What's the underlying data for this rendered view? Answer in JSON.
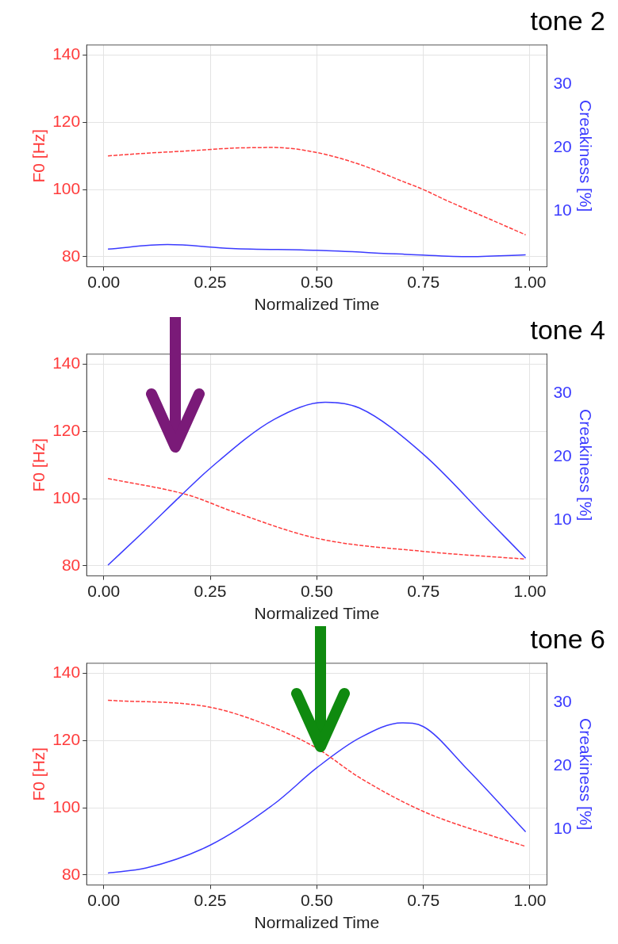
{
  "chart_data": [
    {
      "type": "line",
      "title": "tone 2",
      "xlabel": "Normalized Time",
      "ylabel": "F0 [Hz]",
      "y2label": "Creakiness [%]",
      "xlim": [
        -0.04,
        1.04
      ],
      "xticks": [
        {
          "value": 0,
          "label": "0.00"
        },
        {
          "value": 0.25,
          "label": "0.25"
        },
        {
          "value": 0.5,
          "label": "0.50"
        },
        {
          "value": 0.75,
          "label": "0.75"
        },
        {
          "value": 1,
          "label": "1.00"
        }
      ],
      "ylim": [
        77,
        143
      ],
      "yticks": [
        80,
        100,
        120,
        140
      ],
      "y2lim": [
        1.2,
        36.2
      ],
      "y2ticks": [
        10,
        20,
        30
      ],
      "grid": true,
      "marker": "none",
      "series": [
        {
          "color": "#ff3b3b",
          "line_style": "dashed",
          "x": [
            0.01,
            0.1,
            0.2,
            0.3,
            0.4,
            0.5,
            0.6,
            0.7,
            0.75,
            0.8,
            0.9,
            0.99
          ],
          "values": [
            110,
            110.8,
            111.5,
            112.3,
            112.5,
            111,
            107.5,
            102.5,
            100,
            97,
            91.5,
            86.5
          ]
        },
        {
          "color": "#3b3bff",
          "line_style": "solid",
          "axis": "y2",
          "x": [
            0.01,
            0.15,
            0.3,
            0.5,
            0.7,
            0.85,
            0.99
          ],
          "values": [
            4.0,
            4.7,
            4.1,
            3.8,
            3.2,
            2.8,
            3.1
          ]
        }
      ]
    },
    {
      "type": "line",
      "title": "tone 4",
      "xlabel": "Normalized Time",
      "ylabel": "F0 [Hz]",
      "y2label": "Creakiness [%]",
      "xlim": [
        -0.04,
        1.04
      ],
      "xticks": [
        {
          "value": 0,
          "label": "0.00"
        },
        {
          "value": 0.25,
          "label": "0.25"
        },
        {
          "value": 0.5,
          "label": "0.50"
        },
        {
          "value": 0.75,
          "label": "0.75"
        },
        {
          "value": 1,
          "label": "1.00"
        }
      ],
      "ylim": [
        77,
        143
      ],
      "yticks": [
        80,
        100,
        120,
        140
      ],
      "y2lim": [
        1.2,
        36.2
      ],
      "y2ticks": [
        10,
        20,
        30
      ],
      "grid": true,
      "marker": "none",
      "series": [
        {
          "color": "#ff3b3b",
          "line_style": "dashed",
          "x": [
            0.01,
            0.2,
            0.3,
            0.5,
            0.75,
            0.99
          ],
          "values": [
            106,
            101,
            96.3,
            88.2,
            84.3,
            82
          ]
        },
        {
          "color": "#3b3bff",
          "line_style": "solid",
          "axis": "y2",
          "x": [
            0.01,
            0.1,
            0.18,
            0.25,
            0.4,
            0.52,
            0.6,
            0.75,
            0.9,
            0.99
          ],
          "values": [
            2.9,
            8.6,
            13.8,
            18.2,
            25.9,
            28.6,
            27.7,
            20.4,
            10.2,
            4.0
          ]
        }
      ]
    },
    {
      "type": "line",
      "title": "tone 6",
      "xlabel": "Normalized Time",
      "ylabel": "F0 [Hz]",
      "y2label": "Creakiness [%]",
      "xlim": [
        -0.04,
        1.04
      ],
      "xticks": [
        {
          "value": 0,
          "label": "0.00"
        },
        {
          "value": 0.25,
          "label": "0.25"
        },
        {
          "value": 0.5,
          "label": "0.50"
        },
        {
          "value": 0.75,
          "label": "0.75"
        },
        {
          "value": 1,
          "label": "1.00"
        }
      ],
      "ylim": [
        77,
        143
      ],
      "yticks": [
        80,
        100,
        120,
        140
      ],
      "y2lim": [
        1.2,
        36.2
      ],
      "y2ticks": [
        10,
        20,
        30
      ],
      "grid": true,
      "marker": "none",
      "series": [
        {
          "color": "#ff3b3b",
          "line_style": "dashed",
          "x": [
            0.01,
            0.25,
            0.4,
            0.5,
            0.6,
            0.75,
            0.9,
            0.99
          ],
          "values": [
            132,
            129.9,
            123.8,
            117.7,
            109,
            98.9,
            92.1,
            88.5
          ]
        },
        {
          "color": "#3b3bff",
          "line_style": "solid",
          "axis": "y2",
          "x": [
            0.01,
            0.1,
            0.25,
            0.4,
            0.5,
            0.6,
            0.7,
            0.75,
            0.85,
            0.99
          ],
          "values": [
            3.1,
            3.9,
            7.5,
            14,
            19.7,
            24.4,
            26.8,
            26.2,
            19.7,
            9.6
          ]
        }
      ]
    }
  ]
}
